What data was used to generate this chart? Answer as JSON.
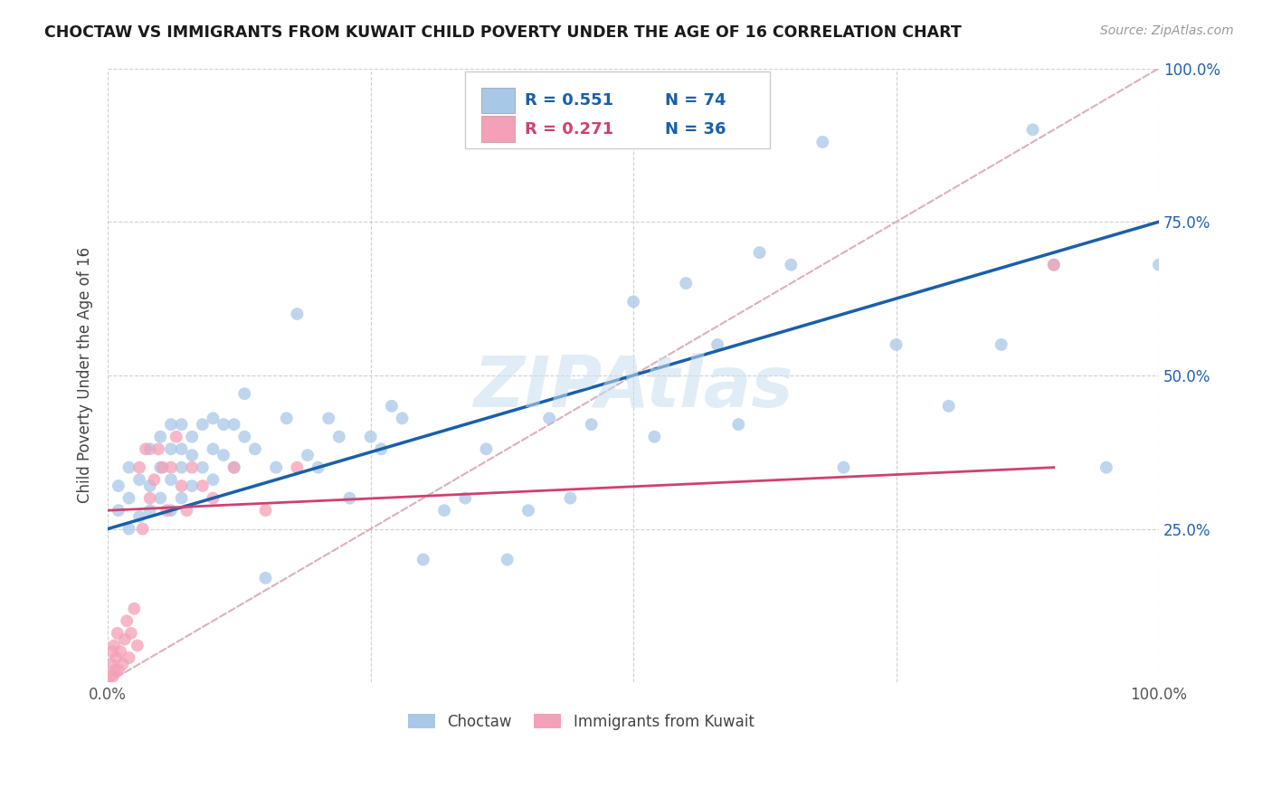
{
  "title": "CHOCTAW VS IMMIGRANTS FROM KUWAIT CHILD POVERTY UNDER THE AGE OF 16 CORRELATION CHART",
  "source": "Source: ZipAtlas.com",
  "ylabel": "Child Poverty Under the Age of 16",
  "legend_label1": "Choctaw",
  "legend_label2": "Immigrants from Kuwait",
  "r1": 0.551,
  "n1": 74,
  "r2": 0.271,
  "n2": 36,
  "color1": "#a8c8e8",
  "color2": "#f4a0b8",
  "line1_color": "#1a5fa8",
  "line2_color": "#d04070",
  "diag_color": "#ddb0b8",
  "watermark": "ZIPAtlas",
  "choctaw_x": [
    0.01,
    0.01,
    0.02,
    0.02,
    0.02,
    0.03,
    0.03,
    0.04,
    0.04,
    0.04,
    0.05,
    0.05,
    0.05,
    0.06,
    0.06,
    0.06,
    0.06,
    0.07,
    0.07,
    0.07,
    0.07,
    0.08,
    0.08,
    0.08,
    0.09,
    0.09,
    0.1,
    0.1,
    0.1,
    0.11,
    0.11,
    0.12,
    0.12,
    0.13,
    0.13,
    0.14,
    0.15,
    0.16,
    0.17,
    0.18,
    0.19,
    0.2,
    0.21,
    0.22,
    0.23,
    0.25,
    0.26,
    0.27,
    0.28,
    0.3,
    0.32,
    0.34,
    0.36,
    0.38,
    0.4,
    0.42,
    0.44,
    0.46,
    0.5,
    0.52,
    0.55,
    0.58,
    0.6,
    0.62,
    0.65,
    0.68,
    0.7,
    0.75,
    0.8,
    0.85,
    0.88,
    0.9,
    0.95,
    1.0
  ],
  "choctaw_y": [
    0.28,
    0.32,
    0.25,
    0.3,
    0.35,
    0.27,
    0.33,
    0.28,
    0.32,
    0.38,
    0.3,
    0.35,
    0.4,
    0.28,
    0.33,
    0.38,
    0.42,
    0.3,
    0.35,
    0.38,
    0.42,
    0.32,
    0.37,
    0.4,
    0.35,
    0.42,
    0.33,
    0.38,
    0.43,
    0.37,
    0.42,
    0.35,
    0.42,
    0.4,
    0.47,
    0.38,
    0.17,
    0.35,
    0.43,
    0.6,
    0.37,
    0.35,
    0.43,
    0.4,
    0.3,
    0.4,
    0.38,
    0.45,
    0.43,
    0.2,
    0.28,
    0.3,
    0.38,
    0.2,
    0.28,
    0.43,
    0.3,
    0.42,
    0.62,
    0.4,
    0.65,
    0.55,
    0.42,
    0.7,
    0.68,
    0.88,
    0.35,
    0.55,
    0.45,
    0.55,
    0.9,
    0.68,
    0.35,
    0.68
  ],
  "kuwait_x": [
    0.002,
    0.003,
    0.004,
    0.005,
    0.006,
    0.007,
    0.008,
    0.009,
    0.01,
    0.012,
    0.014,
    0.016,
    0.018,
    0.02,
    0.022,
    0.025,
    0.028,
    0.03,
    0.033,
    0.036,
    0.04,
    0.044,
    0.048,
    0.052,
    0.056,
    0.06,
    0.065,
    0.07,
    0.075,
    0.08,
    0.09,
    0.1,
    0.12,
    0.15,
    0.18,
    0.9
  ],
  "kuwait_y": [
    0.01,
    0.03,
    0.05,
    0.01,
    0.06,
    0.02,
    0.04,
    0.08,
    0.02,
    0.05,
    0.03,
    0.07,
    0.1,
    0.04,
    0.08,
    0.12,
    0.06,
    0.35,
    0.25,
    0.38,
    0.3,
    0.33,
    0.38,
    0.35,
    0.28,
    0.35,
    0.4,
    0.32,
    0.28,
    0.35,
    0.32,
    0.3,
    0.35,
    0.28,
    0.35,
    0.68
  ],
  "xlim": [
    0.0,
    1.0
  ],
  "ylim": [
    0.0,
    1.0
  ],
  "xticks": [
    0.0,
    0.25,
    0.5,
    0.75,
    1.0
  ],
  "yticks": [
    0.0,
    0.25,
    0.5,
    0.75,
    1.0
  ],
  "xticklabels": [
    "0.0%",
    "",
    "",
    "",
    "100.0%"
  ],
  "right_yticklabels": [
    "",
    "25.0%",
    "50.0%",
    "75.0%",
    "100.0%"
  ],
  "background_color": "#ffffff",
  "grid_color": "#d0d0d0",
  "line1_x0": 0.0,
  "line1_y0": 0.25,
  "line1_x1": 1.0,
  "line1_y1": 0.75,
  "line2_x0": 0.0,
  "line2_y0": 0.28,
  "line2_x1": 0.9,
  "line2_y1": 0.35
}
